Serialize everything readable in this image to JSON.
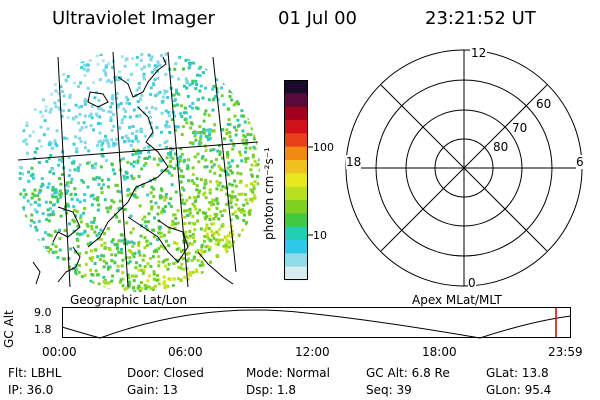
{
  "header": {
    "instrument": "Ultraviolet Imager",
    "date": "01 Jul 00",
    "time": "23:21:52 UT"
  },
  "left_panel": {
    "caption": "Geographic Lat/Lon"
  },
  "colorbar": {
    "unit_label": "photon cm⁻²s⁻¹",
    "tick_labels": [
      "100",
      "10"
    ],
    "scale": "log",
    "colors": [
      "#1a0a2e",
      "#5a0a3a",
      "#a0001e",
      "#d0101a",
      "#e8401a",
      "#f08a10",
      "#f0c020",
      "#e8e820",
      "#b8e020",
      "#80d020",
      "#40c840",
      "#20d0b0",
      "#30c8e8",
      "#90dce8",
      "#d8ecf0"
    ]
  },
  "polar_plot": {
    "caption": "Apex MLat/MLT",
    "mlt_labels": {
      "top": "12",
      "left": "18",
      "right": "6",
      "bottom": "0"
    },
    "lat_labels": [
      "60",
      "70",
      "80"
    ]
  },
  "timeline": {
    "y_axis_label": "GC Alt",
    "y_ticks": [
      "9.0",
      "1.8"
    ],
    "x_ticks": [
      "00:00",
      "06:00",
      "12:00",
      "18:00",
      "23:59"
    ],
    "marker_color": "#cc0000"
  },
  "status": {
    "row1": [
      {
        "key": "Flt:",
        "val": "LBHL"
      },
      {
        "key": "Door:",
        "val": "Closed"
      },
      {
        "key": "Mode:",
        "val": "Normal"
      },
      {
        "key": "GC Alt:",
        "val": "6.8 Re"
      },
      {
        "key": "GLat:",
        "val": "13.8"
      }
    ],
    "row2": [
      {
        "key": "IP:",
        "val": "36.0"
      },
      {
        "key": "Gain:",
        "val": "13"
      },
      {
        "key": "Dsp:",
        "val": "1.8"
      },
      {
        "key": "Seq:",
        "val": "39"
      },
      {
        "key": "GLon:",
        "val": "95.4"
      }
    ]
  }
}
